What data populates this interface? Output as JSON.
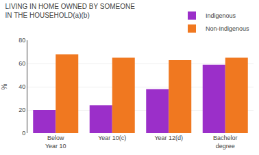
{
  "chart_data": {
    "type": "bar",
    "title": "LIVING IN HOME OWNED BY SOMEONE\nIN THE HOUSEHOLD(a)(b)",
    "ylabel": "%",
    "categories": [
      "Below\nYear 10",
      "Year 10(c)",
      "Year 12(d)",
      "Bachelor\ndegree"
    ],
    "series": [
      {
        "name": "Indigenous",
        "color": "#9B2FC9",
        "values": [
          20,
          24,
          38,
          59
        ]
      },
      {
        "name": "Non-Indigenous",
        "color": "#F07820",
        "values": [
          68,
          65,
          63,
          65
        ]
      }
    ],
    "ylim": [
      0,
      80
    ],
    "yticks": [
      0,
      20,
      40,
      60,
      80
    ],
    "grid": true,
    "legend": "upper right"
  }
}
